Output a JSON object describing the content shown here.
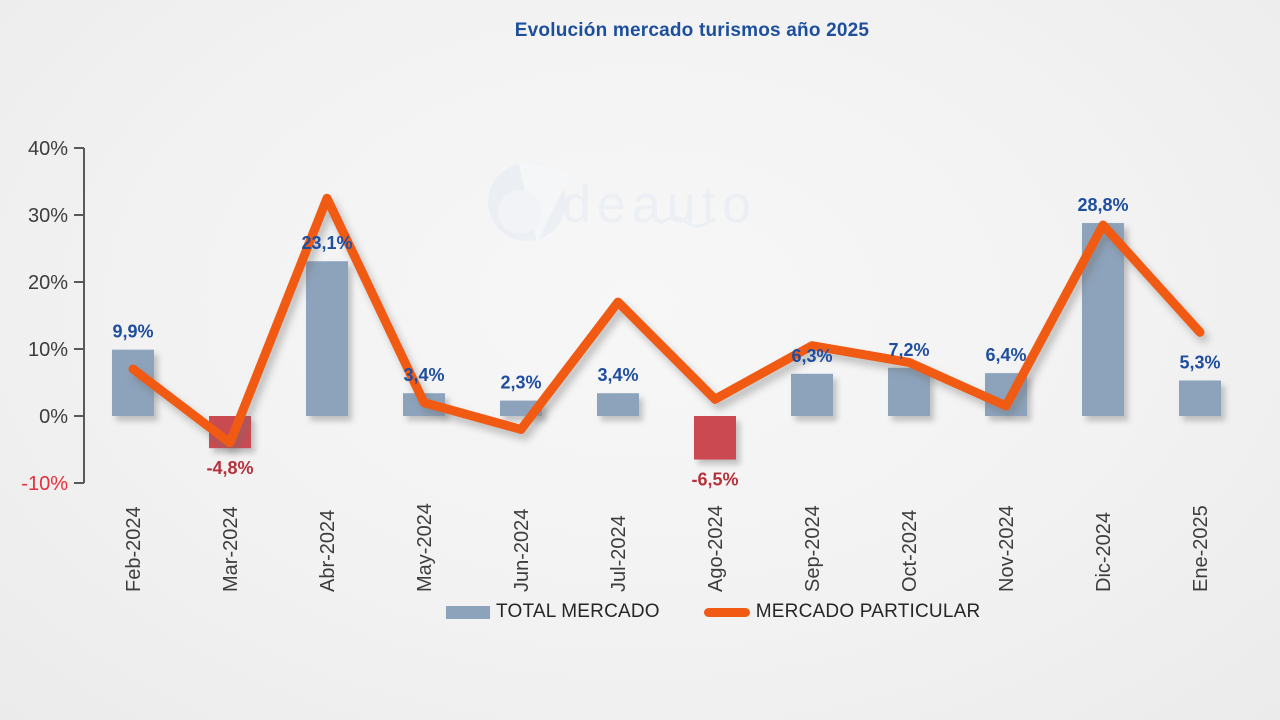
{
  "title": "Evolución mercado turismos año 2025",
  "watermark": {
    "text": "deauto"
  },
  "legend": {
    "items": [
      {
        "label": "TOTAL MERCADO",
        "type": "bar"
      },
      {
        "label": "MERCADO PARTICULAR",
        "type": "line"
      }
    ]
  },
  "colors": {
    "background": "#f2f2f2",
    "title": "#1d4f9c",
    "bar_positive": "#8da3bc",
    "bar_negative": "#cb4a52",
    "line": "#f15a13",
    "label_positive": "#1f4e9e",
    "label_negative": "#b5323c",
    "axis": "#595959",
    "axis_text": "#3d3d3d",
    "axis_text_negative": "#e62e3c",
    "legend_text": "#262626",
    "watermark": "#e4ebf4"
  },
  "chart_data": {
    "type": "bar",
    "title": "Evolución mercado turismos año 2025",
    "xlabel": "",
    "ylabel": "",
    "ylim": [
      -10,
      40
    ],
    "grid": false,
    "legend_position": "bottom",
    "categories": [
      "Feb-2024",
      "Mar-2024",
      "Abr-2024",
      "May-2024",
      "Jun-2024",
      "Jul-2024",
      "Ago-2024",
      "Sep-2024",
      "Oct-2024",
      "Nov-2024",
      "Dic-2024",
      "Ene-2025"
    ],
    "yticks": [
      {
        "value": 40,
        "label": "40%"
      },
      {
        "value": 30,
        "label": "30%"
      },
      {
        "value": 20,
        "label": "20%"
      },
      {
        "value": 10,
        "label": "10%"
      },
      {
        "value": 0,
        "label": "0%"
      },
      {
        "value": -10,
        "label": "-10%"
      }
    ],
    "series": [
      {
        "name": "TOTAL MERCADO",
        "type": "bar",
        "values": [
          9.9,
          -4.8,
          23.1,
          3.4,
          2.3,
          3.4,
          -6.5,
          6.3,
          7.2,
          6.4,
          28.8,
          5.3
        ],
        "labels": [
          "9,9%",
          "-4,8%",
          "23,1%",
          "3,4%",
          "2,3%",
          "3,4%",
          "-6,5%",
          "6,3%",
          "7,2%",
          "6,4%",
          "28,8%",
          "5,3%"
        ]
      },
      {
        "name": "MERCADO PARTICULAR",
        "type": "line",
        "values_estimated": [
          7,
          -4,
          32.5,
          2,
          -2,
          17,
          2.5,
          10.5,
          8,
          1.5,
          28.5,
          12.5
        ]
      }
    ]
  }
}
